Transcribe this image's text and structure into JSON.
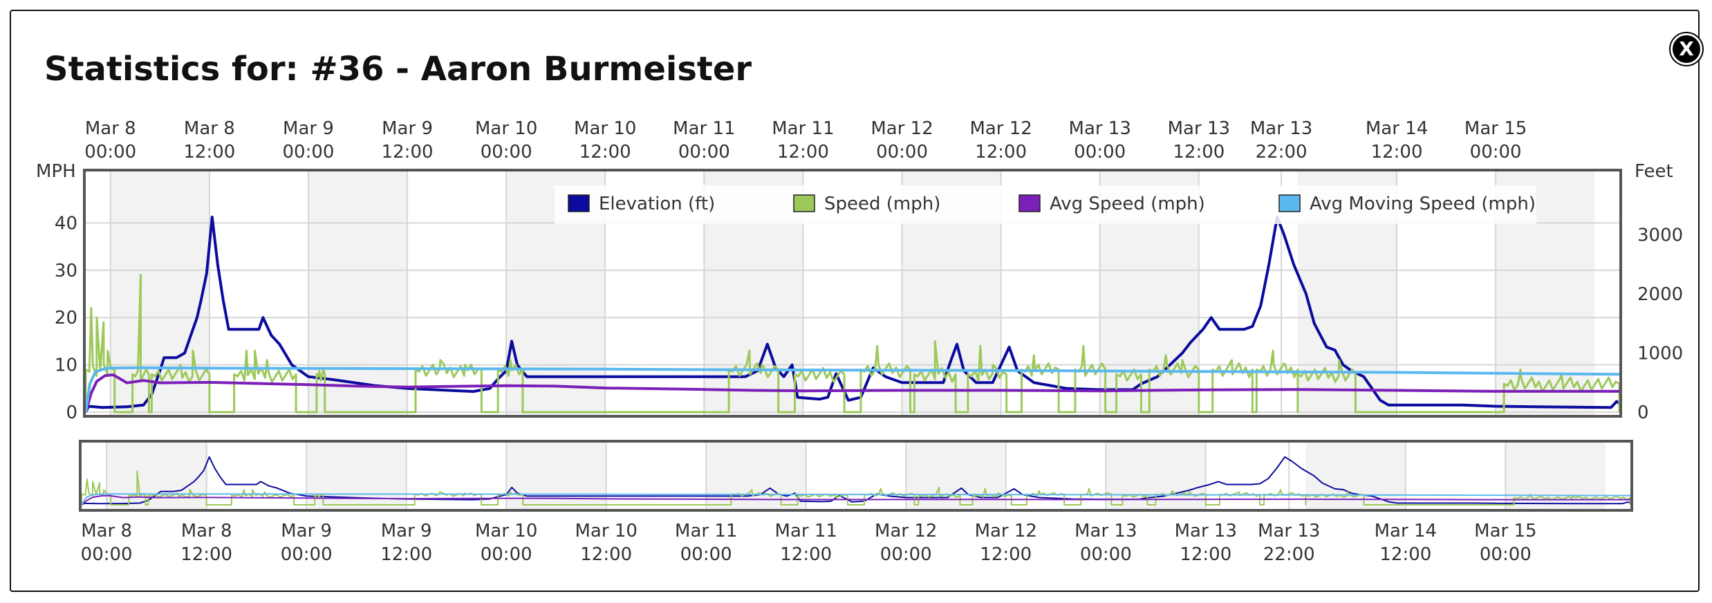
{
  "title": "Statistics for: #36 - Aaron Burmeister",
  "close_label": "X",
  "colors": {
    "elevation": "#0b0b9e",
    "speed": "#9cc95a",
    "avg_speed": "#7a1fb8",
    "avg_moving_speed": "#5bb8ee",
    "band": "#f2f2f2",
    "grid": "#d6d6d6",
    "frame": "#555555"
  },
  "chart_data": {
    "type": "line",
    "time_range": [
      "2024-03-07T21:00",
      "2024-03-15T15:00"
    ],
    "x_ticks": [
      {
        "t": "2024-03-08T00:00",
        "line1": "Mar 8",
        "line2": "00:00"
      },
      {
        "t": "2024-03-08T12:00",
        "line1": "Mar 8",
        "line2": "12:00"
      },
      {
        "t": "2024-03-09T00:00",
        "line1": "Mar 9",
        "line2": "00:00"
      },
      {
        "t": "2024-03-09T12:00",
        "line1": "Mar 9",
        "line2": "12:00"
      },
      {
        "t": "2024-03-10T00:00",
        "line1": "Mar 10",
        "line2": "00:00"
      },
      {
        "t": "2024-03-10T12:00",
        "line1": "Mar 10",
        "line2": "12:00"
      },
      {
        "t": "2024-03-11T00:00",
        "line1": "Mar 11",
        "line2": "00:00"
      },
      {
        "t": "2024-03-11T12:00",
        "line1": "Mar 11",
        "line2": "12:00"
      },
      {
        "t": "2024-03-12T00:00",
        "line1": "Mar 12",
        "line2": "00:00"
      },
      {
        "t": "2024-03-12T12:00",
        "line1": "Mar 12",
        "line2": "12:00"
      },
      {
        "t": "2024-03-13T00:00",
        "line1": "Mar 13",
        "line2": "00:00"
      },
      {
        "t": "2024-03-13T12:00",
        "line1": "Mar 13",
        "line2": "12:00"
      },
      {
        "t": "2024-03-13T22:00",
        "line1": "Mar 13",
        "line2": "22:00"
      },
      {
        "t": "2024-03-14T12:00",
        "line1": "Mar 14",
        "line2": "12:00"
      },
      {
        "t": "2024-03-15T00:00",
        "line1": "Mar 15",
        "line2": "00:00"
      }
    ],
    "shaded_bands": [
      [
        "2024-03-08T00:00",
        "2024-03-08T12:00"
      ],
      [
        "2024-03-09T00:00",
        "2024-03-09T12:00"
      ],
      [
        "2024-03-10T00:00",
        "2024-03-10T12:00"
      ],
      [
        "2024-03-11T00:00",
        "2024-03-11T12:00"
      ],
      [
        "2024-03-12T00:00",
        "2024-03-12T12:00"
      ],
      [
        "2024-03-13T00:00",
        "2024-03-13T12:00"
      ],
      [
        "2024-03-14T00:00",
        "2024-03-14T12:00"
      ],
      [
        "2024-03-15T00:00",
        "2024-03-15T12:00"
      ]
    ],
    "y_left": {
      "label": "MPH",
      "ticks": [
        0,
        10,
        20,
        30,
        40
      ],
      "range": [
        0,
        50
      ]
    },
    "y_right": {
      "label": "Feet",
      "ticks": [
        0,
        1000,
        2000,
        3000
      ],
      "range": [
        0,
        4000
      ]
    },
    "legend": {
      "position": "top-right",
      "items": [
        {
          "name": "Elevation (ft)",
          "color": "#0b0b9e"
        },
        {
          "name": "Speed (mph)",
          "color": "#9cc95a"
        },
        {
          "name": "Avg Speed (mph)",
          "color": "#7a1fb8"
        },
        {
          "name": "Avg Moving Speed (mph)",
          "color": "#5bb8ee"
        }
      ]
    },
    "series": [
      {
        "name": "Elevation (ft)",
        "axis": "right",
        "points": [
          [
            "2024-03-07T21:00",
            0
          ],
          [
            "2024-03-07T21:20",
            100
          ],
          [
            "2024-03-07T23:00",
            80
          ],
          [
            "2024-03-08T02:00",
            90
          ],
          [
            "2024-03-08T04:00",
            120
          ],
          [
            "2024-03-08T05:00",
            300
          ],
          [
            "2024-03-08T06:00",
            700
          ],
          [
            "2024-03-08T06:30",
            920
          ],
          [
            "2024-03-08T08:00",
            920
          ],
          [
            "2024-03-08T09:00",
            1000
          ],
          [
            "2024-03-08T09:45",
            1300
          ],
          [
            "2024-03-08T10:30",
            1600
          ],
          [
            "2024-03-08T11:00",
            1900
          ],
          [
            "2024-03-08T11:40",
            2350
          ],
          [
            "2024-03-08T12:20",
            3300
          ],
          [
            "2024-03-08T13:00",
            2500
          ],
          [
            "2024-03-08T13:40",
            1900
          ],
          [
            "2024-03-08T14:20",
            1400
          ],
          [
            "2024-03-08T16:30",
            1400
          ],
          [
            "2024-03-08T18:00",
            1400
          ],
          [
            "2024-03-08T18:30",
            1600
          ],
          [
            "2024-03-08T19:30",
            1300
          ],
          [
            "2024-03-08T20:30",
            1150
          ],
          [
            "2024-03-08T22:00",
            800
          ],
          [
            "2024-03-09T00:00",
            600
          ],
          [
            "2024-03-09T03:00",
            550
          ],
          [
            "2024-03-09T08:00",
            450
          ],
          [
            "2024-03-09T12:00",
            400
          ],
          [
            "2024-03-09T20:00",
            350
          ],
          [
            "2024-03-09T22:00",
            400
          ],
          [
            "2024-03-09T23:00",
            560
          ],
          [
            "2024-03-10T00:00",
            700
          ],
          [
            "2024-03-10T00:40",
            1200
          ],
          [
            "2024-03-10T01:20",
            800
          ],
          [
            "2024-03-10T02:30",
            600
          ],
          [
            "2024-03-10T06:00",
            600
          ],
          [
            "2024-03-10T12:00",
            600
          ],
          [
            "2024-03-11T00:00",
            600
          ],
          [
            "2024-03-11T05:00",
            600
          ],
          [
            "2024-03-11T06:30",
            700
          ],
          [
            "2024-03-11T07:40",
            1150
          ],
          [
            "2024-03-11T08:40",
            750
          ],
          [
            "2024-03-11T09:40",
            600
          ],
          [
            "2024-03-11T10:40",
            800
          ],
          [
            "2024-03-11T11:20",
            250
          ],
          [
            "2024-03-11T14:00",
            220
          ],
          [
            "2024-03-11T15:00",
            250
          ],
          [
            "2024-03-11T16:00",
            650
          ],
          [
            "2024-03-11T17:30",
            200
          ],
          [
            "2024-03-11T19:00",
            250
          ],
          [
            "2024-03-11T20:30",
            750
          ],
          [
            "2024-03-11T22:00",
            600
          ],
          [
            "2024-03-12T00:00",
            500
          ],
          [
            "2024-03-12T03:00",
            500
          ],
          [
            "2024-03-12T05:00",
            500
          ],
          [
            "2024-03-12T06:00",
            900
          ],
          [
            "2024-03-12T06:40",
            1150
          ],
          [
            "2024-03-12T07:30",
            700
          ],
          [
            "2024-03-12T09:00",
            500
          ],
          [
            "2024-03-12T11:00",
            500
          ],
          [
            "2024-03-12T12:00",
            800
          ],
          [
            "2024-03-12T13:00",
            1100
          ],
          [
            "2024-03-12T14:00",
            700
          ],
          [
            "2024-03-12T16:00",
            500
          ],
          [
            "2024-03-12T20:00",
            400
          ],
          [
            "2024-03-13T00:00",
            380
          ],
          [
            "2024-03-13T04:00",
            380
          ],
          [
            "2024-03-13T05:00",
            480
          ],
          [
            "2024-03-13T07:00",
            600
          ],
          [
            "2024-03-13T08:30",
            800
          ],
          [
            "2024-03-13T10:00",
            1000
          ],
          [
            "2024-03-13T11:00",
            1180
          ],
          [
            "2024-03-13T12:30",
            1400
          ],
          [
            "2024-03-13T13:30",
            1600
          ],
          [
            "2024-03-13T14:30",
            1400
          ],
          [
            "2024-03-13T17:30",
            1400
          ],
          [
            "2024-03-13T18:30",
            1450
          ],
          [
            "2024-03-13T19:30",
            1800
          ],
          [
            "2024-03-13T20:30",
            2500
          ],
          [
            "2024-03-13T21:30",
            3300
          ],
          [
            "2024-03-13T22:20",
            3000
          ],
          [
            "2024-03-13T23:30",
            2500
          ],
          [
            "2024-03-14T01:00",
            2000
          ],
          [
            "2024-03-14T02:00",
            1500
          ],
          [
            "2024-03-14T03:30",
            1100
          ],
          [
            "2024-03-14T04:30",
            1050
          ],
          [
            "2024-03-14T05:30",
            800
          ],
          [
            "2024-03-14T06:30",
            700
          ],
          [
            "2024-03-14T08:00",
            600
          ],
          [
            "2024-03-14T09:00",
            400
          ],
          [
            "2024-03-14T10:00",
            200
          ],
          [
            "2024-03-14T11:00",
            120
          ],
          [
            "2024-03-14T16:00",
            120
          ],
          [
            "2024-03-14T20:00",
            120
          ],
          [
            "2024-03-15T00:00",
            100
          ],
          [
            "2024-03-15T05:00",
            90
          ],
          [
            "2024-03-15T14:00",
            80
          ],
          [
            "2024-03-15T14:40",
            180
          ],
          [
            "2024-03-15T15:00",
            150
          ]
        ]
      },
      {
        "name": "Speed (mph)",
        "axis": "left",
        "segments": [
          {
            "start": "2024-03-07T21:00",
            "end": "2024-03-08T00:30",
            "level": 9,
            "spikes": [
              [
                "2024-03-07T21:40",
                22
              ],
              [
                "2024-03-07T22:20",
                20
              ],
              [
                "2024-03-07T23:10",
                19
              ],
              [
                "2024-03-07T23:40",
                13
              ]
            ]
          },
          {
            "start": "2024-03-08T02:40",
            "end": "2024-03-08T04:40",
            "level": 8,
            "spikes": [
              [
                "2024-03-08T03:40",
                29
              ]
            ]
          },
          {
            "start": "2024-03-08T05:00",
            "end": "2024-03-08T12:00",
            "level": 8,
            "spikes": [
              [
                "2024-03-08T08:30",
                10
              ],
              [
                "2024-03-08T10:00",
                13
              ]
            ]
          },
          {
            "start": "2024-03-08T15:00",
            "end": "2024-03-08T22:30",
            "level": 8,
            "spikes": [
              [
                "2024-03-08T16:30",
                13
              ],
              [
                "2024-03-08T17:30",
                13
              ],
              [
                "2024-03-08T19:00",
                11
              ]
            ]
          },
          {
            "start": "2024-03-09T01:00",
            "end": "2024-03-09T02:00",
            "level": 8,
            "spikes": []
          },
          {
            "start": "2024-03-09T13:00",
            "end": "2024-03-09T21:00",
            "level": 9,
            "spikes": [
              [
                "2024-03-09T16:00",
                11
              ],
              [
                "2024-03-09T19:00",
                10
              ]
            ]
          },
          {
            "start": "2024-03-09T23:00",
            "end": "2024-03-10T02:00",
            "level": 9,
            "spikes": [
              [
                "2024-03-10T00:30",
                11
              ]
            ]
          },
          {
            "start": "2024-03-11T03:00",
            "end": "2024-03-11T09:00",
            "level": 9,
            "spikes": [
              [
                "2024-03-11T05:30",
                13
              ],
              [
                "2024-03-11T07:00",
                10
              ]
            ]
          },
          {
            "start": "2024-03-11T11:00",
            "end": "2024-03-11T17:00",
            "level": 8,
            "spikes": []
          },
          {
            "start": "2024-03-11T19:00",
            "end": "2024-03-12T01:00",
            "level": 9,
            "spikes": [
              [
                "2024-03-11T21:00",
                14
              ]
            ]
          },
          {
            "start": "2024-03-12T01:30",
            "end": "2024-03-12T06:30",
            "level": 8,
            "spikes": [
              [
                "2024-03-12T04:00",
                15
              ]
            ]
          },
          {
            "start": "2024-03-12T08:00",
            "end": "2024-03-12T12:40",
            "level": 8,
            "spikes": [
              [
                "2024-03-12T09:30",
                14
              ],
              [
                "2024-03-12T11:00",
                10
              ]
            ]
          },
          {
            "start": "2024-03-12T14:30",
            "end": "2024-03-12T19:00",
            "level": 9,
            "spikes": [
              [
                "2024-03-12T16:00",
                12
              ]
            ]
          },
          {
            "start": "2024-03-12T21:00",
            "end": "2024-03-13T00:40",
            "level": 9,
            "spikes": [
              [
                "2024-03-12T22:00",
                14
              ]
            ]
          },
          {
            "start": "2024-03-13T02:00",
            "end": "2024-03-13T05:00",
            "level": 8,
            "spikes": []
          },
          {
            "start": "2024-03-13T06:00",
            "end": "2024-03-13T12:00",
            "level": 9,
            "spikes": [
              [
                "2024-03-13T08:00",
                12
              ],
              [
                "2024-03-13T10:00",
                11
              ]
            ]
          },
          {
            "start": "2024-03-13T13:40",
            "end": "2024-03-13T18:30",
            "level": 9,
            "spikes": [
              [
                "2024-03-13T16:00",
                11
              ]
            ]
          },
          {
            "start": "2024-03-13T19:00",
            "end": "2024-03-14T00:00",
            "level": 9,
            "spikes": [
              [
                "2024-03-13T21:00",
                13
              ],
              [
                "2024-03-13T22:30",
                10
              ]
            ]
          },
          {
            "start": "2024-03-14T00:00",
            "end": "2024-03-14T07:00",
            "level": 8,
            "spikes": [
              [
                "2024-03-14T05:00",
                11
              ]
            ]
          },
          {
            "start": "2024-03-15T01:00",
            "end": "2024-03-15T15:00",
            "level": 6,
            "spikes": [
              [
                "2024-03-15T03:00",
                9
              ],
              [
                "2024-03-15T08:00",
                8
              ]
            ]
          }
        ]
      },
      {
        "name": "Avg Speed (mph)",
        "axis": "left",
        "points": [
          [
            "2024-03-07T21:00",
            0
          ],
          [
            "2024-03-07T21:40",
            4
          ],
          [
            "2024-03-07T22:20",
            6.5
          ],
          [
            "2024-03-07T23:20",
            7.7
          ],
          [
            "2024-03-08T00:20",
            7.9
          ],
          [
            "2024-03-08T02:00",
            6.2
          ],
          [
            "2024-03-08T04:00",
            6.7
          ],
          [
            "2024-03-08T06:00",
            6.2
          ],
          [
            "2024-03-08T12:00",
            6.3
          ],
          [
            "2024-03-09T00:00",
            5.8
          ],
          [
            "2024-03-09T06:00",
            5.5
          ],
          [
            "2024-03-09T12:00",
            5.3
          ],
          [
            "2024-03-10T00:00",
            5.6
          ],
          [
            "2024-03-10T06:00",
            5.5
          ],
          [
            "2024-03-10T12:00",
            5.1
          ],
          [
            "2024-03-11T00:00",
            4.8
          ],
          [
            "2024-03-11T06:00",
            4.6
          ],
          [
            "2024-03-11T12:00",
            4.5
          ],
          [
            "2024-03-12T00:00",
            4.6
          ],
          [
            "2024-03-12T12:00",
            4.6
          ],
          [
            "2024-03-13T00:00",
            4.5
          ],
          [
            "2024-03-13T12:00",
            4.7
          ],
          [
            "2024-03-14T00:00",
            4.8
          ],
          [
            "2024-03-14T12:00",
            4.6
          ],
          [
            "2024-03-15T00:00",
            4.4
          ],
          [
            "2024-03-15T15:00",
            4.4
          ]
        ]
      },
      {
        "name": "Avg Moving Speed (mph)",
        "axis": "left",
        "points": [
          [
            "2024-03-07T21:00",
            0
          ],
          [
            "2024-03-07T21:30",
            6
          ],
          [
            "2024-03-07T22:10",
            8.5
          ],
          [
            "2024-03-07T23:30",
            9.3
          ],
          [
            "2024-03-08T03:00",
            9.4
          ],
          [
            "2024-03-08T12:00",
            9.3
          ],
          [
            "2024-03-09T12:00",
            9.2
          ],
          [
            "2024-03-10T12:00",
            9.1
          ],
          [
            "2024-03-11T12:00",
            8.9
          ],
          [
            "2024-03-12T12:00",
            8.8
          ],
          [
            "2024-03-13T12:00",
            8.6
          ],
          [
            "2024-03-14T12:00",
            8.4
          ],
          [
            "2024-03-15T15:00",
            8.0
          ]
        ]
      }
    ]
  }
}
